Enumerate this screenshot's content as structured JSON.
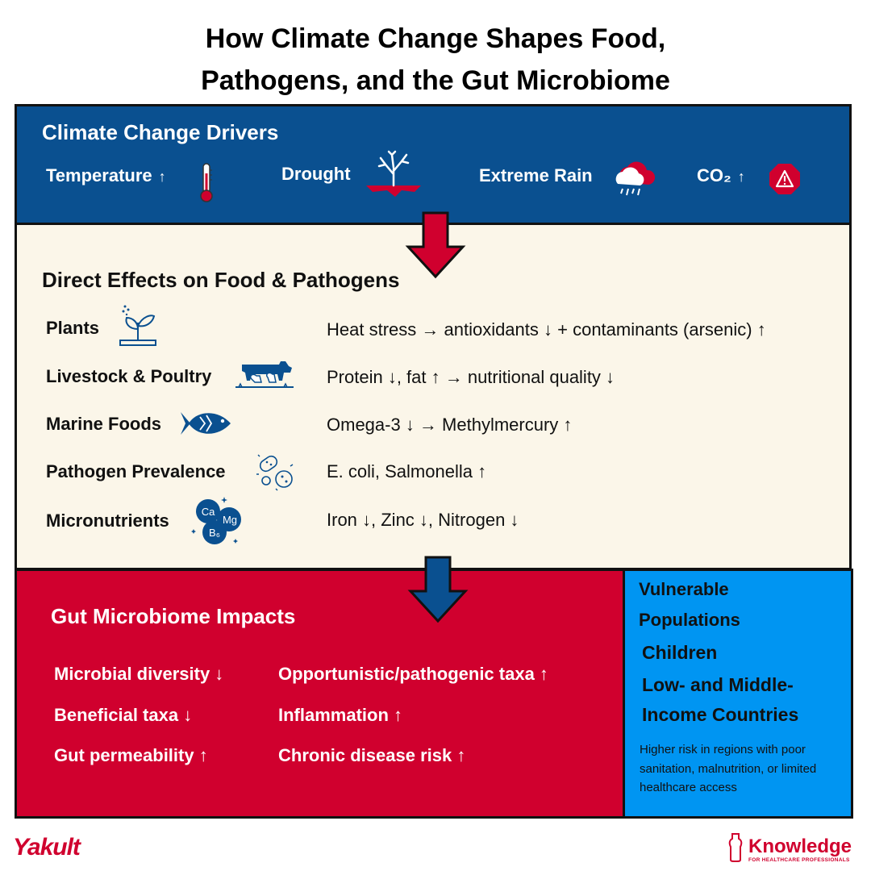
{
  "title": {
    "line1": "How Climate Change Shapes Food,",
    "line2": "Pathogens, and the Gut Microbiome"
  },
  "drivers": {
    "heading": "Climate Change Drivers",
    "items": [
      {
        "label": "Temperature",
        "arrow": "↑",
        "icon": "thermometer-icon"
      },
      {
        "label": "Drought",
        "arrow": "",
        "icon": "dead-tree-icon"
      },
      {
        "label": "Extreme Rain",
        "arrow": "",
        "icon": "rain-cloud-icon"
      },
      {
        "label": "CO₂",
        "arrow": "↑",
        "icon": "warning-icon"
      }
    ]
  },
  "direct": {
    "heading": "Direct Effects on Food & Pathogens",
    "rows": [
      {
        "label": "Plants",
        "effect": "Heat stress → antioxidants ↓ + contaminants (arsenic) ↑",
        "icon": "sprout-icon"
      },
      {
        "label": "Livestock & Poultry",
        "effect": "Protein ↓, fat ↑  → nutritional quality ↓",
        "icon": "livestock-icon"
      },
      {
        "label": "Marine Foods",
        "effect": "Omega-3 ↓ → Methylmercury ↑",
        "icon": "fish-icon"
      },
      {
        "label": "Pathogen Prevalence",
        "effect": "E. coli, Salmonella ↑",
        "icon": "bacteria-icon"
      },
      {
        "label": "Micronutrients",
        "effect": "Iron ↓, Zinc ↓, Nitrogen ↓",
        "icon": "minerals-icon"
      }
    ],
    "mineral_labels": [
      "Ca",
      "Mg",
      "B₆"
    ]
  },
  "gut": {
    "heading": "Gut Microbiome Impacts",
    "left": [
      "Microbial diversity ↓",
      "Beneficial taxa ↓",
      "Gut permeability ↑"
    ],
    "right": [
      "Opportunistic/pathogenic taxa ↑",
      "Inflammation ↑",
      "Chronic disease risk ↑"
    ]
  },
  "vulnerable": {
    "heading_line1": "Vulnerable",
    "heading_line2": "Populations",
    "groups": [
      "Children",
      "Low- and Middle-",
      "Income Countries"
    ],
    "note": "Higher risk in regions with poor sanitation, malnutrition, or limited healthcare access"
  },
  "footer": {
    "brand_left": "Yakult",
    "brand_right": "Knowledge",
    "brand_right_sub": "FOR HEALTHCARE PROFESSIONALS"
  },
  "colors": {
    "navy": "#0a5090",
    "cream": "#fbf6e9",
    "red": "#d0002e",
    "sky": "#0095f2"
  }
}
